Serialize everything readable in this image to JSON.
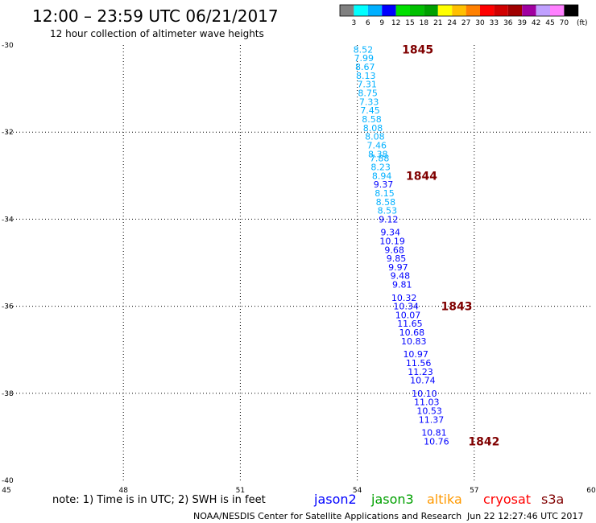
{
  "header": {
    "title": "12:00 – 23:59 UTC 06/21/2017",
    "subtitle": "12 hour collection of altimeter wave heights"
  },
  "color_scale": {
    "labels": [
      "3",
      "6",
      "9",
      "12",
      "15",
      "18",
      "21",
      "24",
      "27",
      "30",
      "33",
      "36",
      "39",
      "42",
      "45",
      "70"
    ],
    "unit": "(ft)",
    "colors": [
      "#808080",
      "#00ffff",
      "#00b0ff",
      "#0000ff",
      "#00e000",
      "#00c000",
      "#00a000",
      "#ffff00",
      "#ffc000",
      "#ff8000",
      "#ff0000",
      "#d00000",
      "#a00000",
      "#a000a0",
      "#c0a0ff",
      "#ff80ff",
      "#000000"
    ]
  },
  "chart_data": {
    "type": "scatter",
    "xlim": [
      45,
      60
    ],
    "ylim": [
      -40,
      -30
    ],
    "x_ticks": [
      45,
      48,
      51,
      54,
      57,
      60
    ],
    "y_ticks": [
      -30,
      -32,
      -34,
      -36,
      -38,
      -40
    ],
    "x_tick_labels": [
      "45",
      "48",
      "51",
      "54",
      "57",
      "60"
    ],
    "y_tick_labels": [
      "-30",
      "-32",
      "-34",
      "-36",
      "-38",
      "-40"
    ],
    "grid": true,
    "points": [
      {
        "x": 54.15,
        "y": -30.1,
        "v": "8.52",
        "c": "#00b0ff"
      },
      {
        "x": 54.17,
        "y": -30.3,
        "v": "7.99",
        "c": "#00b0ff"
      },
      {
        "x": 54.2,
        "y": -30.5,
        "v": "8.67",
        "c": "#00b0ff"
      },
      {
        "x": 54.22,
        "y": -30.7,
        "v": "8.13",
        "c": "#00b0ff"
      },
      {
        "x": 54.25,
        "y": -30.9,
        "v": "7.31",
        "c": "#00b0ff"
      },
      {
        "x": 54.27,
        "y": -31.1,
        "v": "8.75",
        "c": "#00b0ff"
      },
      {
        "x": 54.3,
        "y": -31.3,
        "v": "7.33",
        "c": "#00b0ff"
      },
      {
        "x": 54.33,
        "y": -31.5,
        "v": "7.45",
        "c": "#00b0ff"
      },
      {
        "x": 54.37,
        "y": -31.7,
        "v": "8.58",
        "c": "#00b0ff"
      },
      {
        "x": 54.4,
        "y": -31.9,
        "v": "8.08",
        "c": "#00b0ff"
      },
      {
        "x": 54.45,
        "y": -32.1,
        "v": "8.08",
        "c": "#00b0ff"
      },
      {
        "x": 54.5,
        "y": -32.3,
        "v": "7.46",
        "c": "#00b0ff"
      },
      {
        "x": 54.53,
        "y": -32.5,
        "v": "8.38",
        "c": "#00b0ff"
      },
      {
        "x": 54.57,
        "y": -32.6,
        "v": "7.88",
        "c": "#00b0ff"
      },
      {
        "x": 54.6,
        "y": -32.8,
        "v": "8.23",
        "c": "#00b0ff"
      },
      {
        "x": 54.63,
        "y": -33.0,
        "v": "8.94",
        "c": "#00b0ff"
      },
      {
        "x": 54.67,
        "y": -33.2,
        "v": "9.37",
        "c": "#0000ff"
      },
      {
        "x": 54.7,
        "y": -33.4,
        "v": "8.15",
        "c": "#00b0ff"
      },
      {
        "x": 54.73,
        "y": -33.6,
        "v": "8.58",
        "c": "#00b0ff"
      },
      {
        "x": 54.77,
        "y": -33.8,
        "v": "8.53",
        "c": "#00b0ff"
      },
      {
        "x": 54.8,
        "y": -34.0,
        "v": "9.12",
        "c": "#0000ff"
      },
      {
        "x": 54.85,
        "y": -34.3,
        "v": "9.34",
        "c": "#0000ff"
      },
      {
        "x": 54.9,
        "y": -34.5,
        "v": "10.19",
        "c": "#0000ff"
      },
      {
        "x": 54.95,
        "y": -34.7,
        "v": "9.68",
        "c": "#0000ff"
      },
      {
        "x": 55.0,
        "y": -34.9,
        "v": "9.85",
        "c": "#0000ff"
      },
      {
        "x": 55.05,
        "y": -35.1,
        "v": "9.97",
        "c": "#0000ff"
      },
      {
        "x": 55.1,
        "y": -35.3,
        "v": "9.48",
        "c": "#0000ff"
      },
      {
        "x": 55.15,
        "y": -35.5,
        "v": "9.81",
        "c": "#0000ff"
      },
      {
        "x": 55.2,
        "y": -35.8,
        "v": "10.32",
        "c": "#0000ff"
      },
      {
        "x": 55.25,
        "y": -36.0,
        "v": "10.34",
        "c": "#0000ff"
      },
      {
        "x": 55.3,
        "y": -36.2,
        "v": "10.07",
        "c": "#0000ff"
      },
      {
        "x": 55.35,
        "y": -36.4,
        "v": "11.65",
        "c": "#0000ff"
      },
      {
        "x": 55.4,
        "y": -36.6,
        "v": "10.68",
        "c": "#0000ff"
      },
      {
        "x": 55.45,
        "y": -36.8,
        "v": "10.83",
        "c": "#0000ff"
      },
      {
        "x": 55.5,
        "y": -37.1,
        "v": "10.97",
        "c": "#0000ff"
      },
      {
        "x": 55.57,
        "y": -37.3,
        "v": "11.56",
        "c": "#0000ff"
      },
      {
        "x": 55.62,
        "y": -37.5,
        "v": "11.23",
        "c": "#0000ff"
      },
      {
        "x": 55.68,
        "y": -37.7,
        "v": "10.74",
        "c": "#0000ff"
      },
      {
        "x": 55.72,
        "y": -38.0,
        "v": "10.10",
        "c": "#0000ff"
      },
      {
        "x": 55.78,
        "y": -38.2,
        "v": "11.03",
        "c": "#0000ff"
      },
      {
        "x": 55.85,
        "y": -38.4,
        "v": "10.53",
        "c": "#0000ff"
      },
      {
        "x": 55.9,
        "y": -38.6,
        "v": "11.37",
        "c": "#0000ff"
      },
      {
        "x": 55.97,
        "y": -38.9,
        "v": "10.81",
        "c": "#0000ff"
      },
      {
        "x": 56.03,
        "y": -39.1,
        "v": "10.76",
        "c": "#0000ff"
      }
    ],
    "time_labels": [
      {
        "x": 55.55,
        "y": -30.1,
        "text": "1845"
      },
      {
        "x": 55.65,
        "y": -33.0,
        "text": "1844"
      },
      {
        "x": 56.55,
        "y": -36.0,
        "text": "1843"
      },
      {
        "x": 57.25,
        "y": -39.1,
        "text": "1842"
      }
    ],
    "time_label_color": "#800000"
  },
  "footer": {
    "note": "note:  1) Time is in UTC;  2) SWH is in feet",
    "satellites": [
      {
        "name": "jason2",
        "color": "#0000ff"
      },
      {
        "name": "jason3",
        "color": "#00a000"
      },
      {
        "name": "altika",
        "color": "#ff9900"
      },
      {
        "name": "cryosat",
        "color": "#ff0000"
      },
      {
        "name": "s3a",
        "color": "#800000"
      }
    ],
    "credit": "NOAA/NESDIS Center for Satellite Applications and Research",
    "timestamp": "Jun 22 12:27:46 UTC 2017"
  }
}
